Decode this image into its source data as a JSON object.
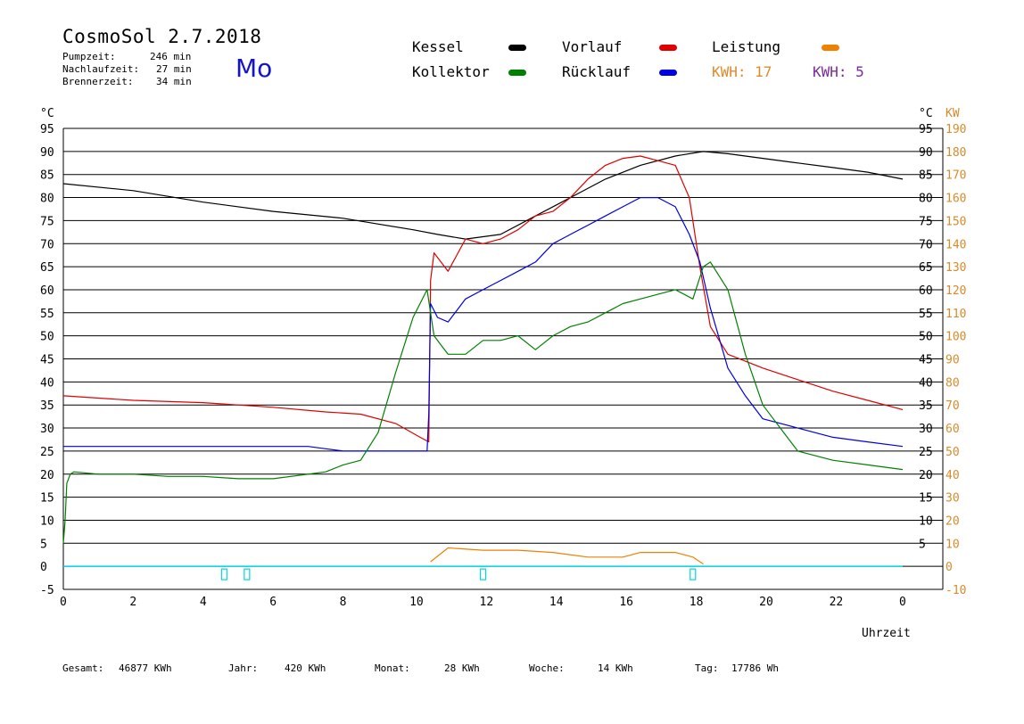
{
  "header": {
    "title": "CosmoSol 2.7.2018",
    "day": "Mo",
    "stats": [
      {
        "label": "Pumpzeit:",
        "value": "246 min"
      },
      {
        "label": "Nachlaufzeit:",
        "value": "27 min"
      },
      {
        "label": "Brennerzeit:",
        "value": "34 min"
      }
    ]
  },
  "legend": {
    "items": [
      {
        "label": "Kessel",
        "color": "#000000"
      },
      {
        "label": "Vorlauf",
        "color": "#e00000"
      },
      {
        "label": "Leistung",
        "color": "#f08000"
      },
      {
        "label": "Kollektor",
        "color": "#008000"
      },
      {
        "label": "Rücklauf",
        "color": "#0000e0"
      }
    ],
    "kwh_orange": "KWH: 17",
    "kwh_purple": "KWH: 5",
    "kwh_orange_color": "#e08a2c",
    "kwh_purple_color": "#7a2a9a"
  },
  "footer": {
    "gesamt_label": "Gesamt:",
    "gesamt_value": "46877 KWh",
    "jahr_label": "Jahr:",
    "jahr_value": "420 KWh",
    "monat_label": "Monat:",
    "monat_value": "28 KWh",
    "woche_label": "Woche:",
    "woche_value": "14 KWh",
    "tag_label": "Tag:",
    "tag_value": "17786 Wh"
  },
  "chart_data": {
    "type": "line",
    "xlabel": "Uhrzeit",
    "ylabel_left": "°C",
    "ylabel_right_1": "°C",
    "ylabel_right_2": "KW",
    "xlim": [
      0,
      24
    ],
    "ylim": [
      -5,
      95
    ],
    "grid": true,
    "x_ticks": [
      "0",
      "2",
      "4",
      "6",
      "8",
      "10",
      "12",
      "14",
      "16",
      "18",
      "20",
      "22",
      "0"
    ],
    "y_left_ticks": [
      "95",
      "90",
      "85",
      "80",
      "75",
      "70",
      "65",
      "60",
      "55",
      "50",
      "45",
      "40",
      "35",
      "30",
      "25",
      "20",
      "15",
      "10",
      "5",
      "0",
      "-5"
    ],
    "y_right_ticks": [
      "95",
      "90",
      "85",
      "80",
      "75",
      "70",
      "65",
      "60",
      "55",
      "50",
      "45",
      "40",
      "35",
      "30",
      "25",
      "20",
      "15",
      "10",
      "5"
    ],
    "kw_ticks": [
      "190",
      "180",
      "170",
      "160",
      "150",
      "140",
      "130",
      "120",
      "110",
      "100",
      "90",
      "80",
      "70",
      "60",
      "50",
      "40",
      "30",
      "20",
      "10",
      "0",
      "-10"
    ],
    "series": [
      {
        "name": "Kessel",
        "color": "#000000",
        "x": [
          0,
          2,
          4,
          6,
          8,
          10,
          10.7,
          11.5,
          12.5,
          13.5,
          14.5,
          15.5,
          16.5,
          17.5,
          18.3,
          19,
          20,
          21,
          22,
          23,
          24
        ],
        "y": [
          83,
          81.5,
          79,
          77,
          75.5,
          73,
          72,
          71,
          72,
          76,
          80,
          84,
          87,
          89,
          90,
          89.5,
          88.5,
          87.5,
          86.5,
          85.5,
          84
        ]
      },
      {
        "name": "Vorlauf",
        "color": "#e00000",
        "x": [
          0,
          2,
          4,
          6,
          7.5,
          8.5,
          9.5,
          10.2,
          10.45,
          10.5,
          10.6,
          11,
          11.5,
          12,
          12.5,
          13,
          13.5,
          14,
          14.5,
          15,
          15.5,
          16,
          16.5,
          17,
          17.5,
          17.9,
          18.2,
          18.5,
          19,
          20,
          21,
          22,
          23,
          24
        ],
        "y": [
          37,
          36,
          35.5,
          34.5,
          33.5,
          33,
          31,
          28,
          27,
          62,
          68,
          64,
          71,
          70,
          71,
          73,
          76,
          77,
          80,
          84,
          87,
          88.5,
          89,
          88,
          87,
          80,
          65,
          52,
          46,
          43,
          40.5,
          38,
          36,
          34
        ]
      },
      {
        "name": "Rücklauf",
        "color": "#0000e0",
        "x": [
          0,
          1,
          3,
          5,
          7,
          7.5,
          8,
          9,
          10.4,
          10.45,
          10.5,
          10.7,
          11,
          11.5,
          12,
          12.5,
          13,
          13.5,
          14,
          14.5,
          15,
          15.5,
          16,
          16.5,
          17,
          17.5,
          17.9,
          18.2,
          18.5,
          19,
          19.5,
          20,
          21,
          22,
          23,
          24
        ],
        "y": [
          26,
          26,
          26,
          26,
          26,
          25.5,
          25,
          25,
          25,
          33,
          57,
          54,
          53,
          58,
          60,
          62,
          64,
          66,
          70,
          72,
          74,
          76,
          78,
          80,
          80,
          78,
          72,
          66,
          56,
          43,
          37,
          32,
          30,
          28,
          27,
          26
        ]
      },
      {
        "name": "Kollektor",
        "color": "#008000",
        "x": [
          0,
          0.05,
          0.1,
          0.2,
          0.3,
          1,
          2,
          3,
          4,
          5,
          6,
          7,
          7.5,
          8,
          8.5,
          9,
          9.5,
          10,
          10.4,
          10.6,
          10.8,
          11,
          11.5,
          12,
          12.5,
          13,
          13.5,
          14,
          14.5,
          15,
          15.5,
          16,
          16.5,
          17,
          17.5,
          18,
          18.3,
          18.5,
          19,
          19.5,
          20,
          20.3,
          20.5,
          21,
          21.5,
          22,
          23,
          24
        ],
        "y": [
          5,
          10,
          18,
          20,
          20.5,
          20,
          20,
          19.5,
          19.5,
          19,
          19,
          20,
          20.5,
          22,
          23,
          29,
          42,
          54,
          60,
          50,
          48,
          46,
          46,
          49,
          49,
          50,
          47,
          50,
          52,
          53,
          55,
          57,
          58,
          59,
          60,
          58,
          65,
          66,
          60,
          46,
          35,
          32,
          30,
          25,
          24,
          23,
          22,
          21
        ]
      },
      {
        "name": "Leistung",
        "color": "#f08000",
        "x": [
          10.5,
          11,
          12,
          13,
          14,
          15,
          16,
          16.5,
          17,
          17.5,
          18,
          18.3
        ],
        "y": [
          1,
          4,
          3.5,
          3.5,
          3,
          2,
          2,
          3,
          3,
          3,
          2,
          0.5
        ]
      }
    ]
  }
}
